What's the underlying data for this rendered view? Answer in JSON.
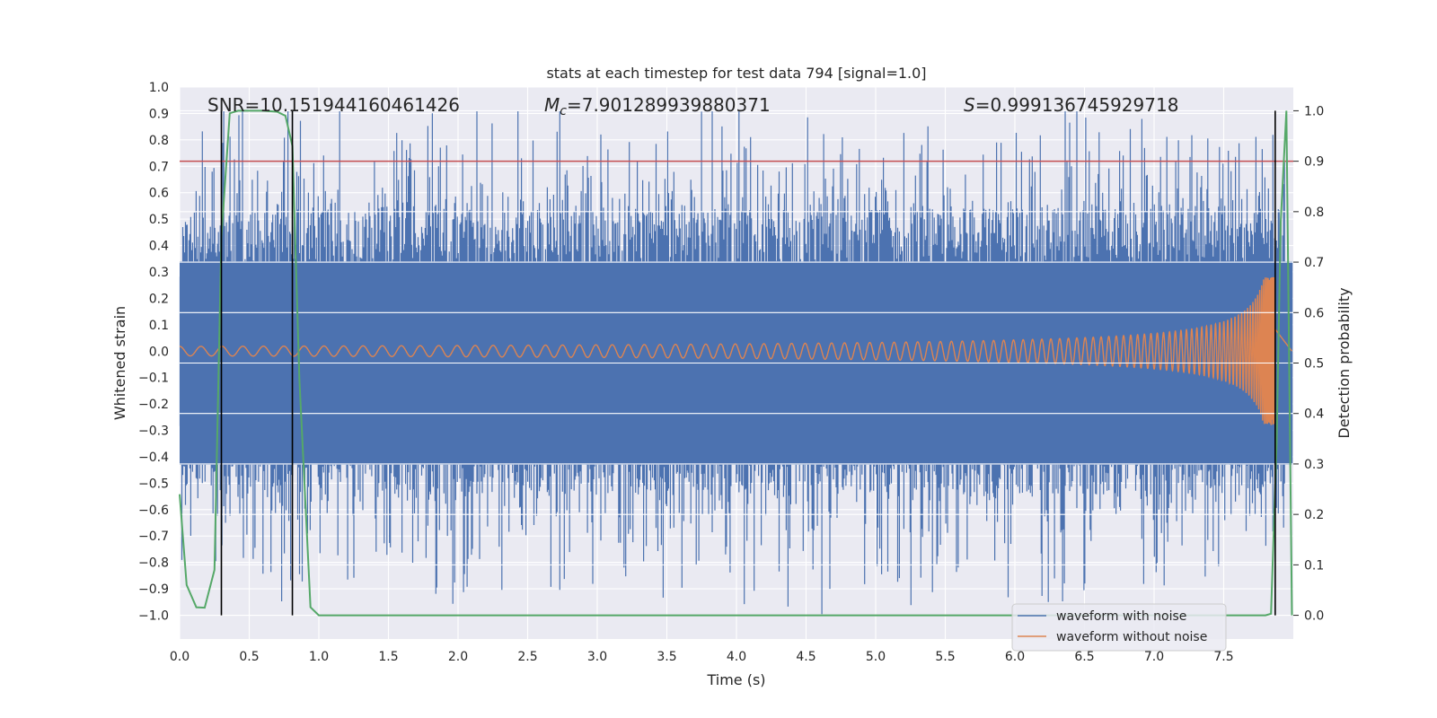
{
  "chart_data": {
    "type": "line",
    "title": "stats at each timestep for test data 794 [signal=1.0]",
    "xlabel": "Time (s)",
    "ylabel": "Whitened strain",
    "y2label": "Detection probability",
    "xlim": [
      0.0,
      8.0
    ],
    "ylim": [
      -1.09,
      1.0
    ],
    "y2lim": [
      -0.047,
      1.047
    ],
    "xticks": [
      "0.0",
      "0.5",
      "1.0",
      "1.5",
      "2.0",
      "2.5",
      "3.0",
      "3.5",
      "4.0",
      "4.5",
      "5.0",
      "5.5",
      "6.0",
      "6.5",
      "7.0",
      "7.5"
    ],
    "xtick_values": [
      0.0,
      0.5,
      1.0,
      1.5,
      2.0,
      2.5,
      3.0,
      3.5,
      4.0,
      4.5,
      5.0,
      5.5,
      6.0,
      6.5,
      7.0,
      7.5
    ],
    "yticks": [
      "1.0",
      "0.9",
      "0.8",
      "0.7",
      "0.6",
      "0.5",
      "0.4",
      "0.3",
      "0.2",
      "0.1",
      "0.0",
      "−0.1",
      "−0.2",
      "−0.3",
      "−0.4",
      "−0.5",
      "−0.6",
      "−0.7",
      "−0.8",
      "−0.9",
      "−1.0"
    ],
    "ytick_values": [
      1.0,
      0.9,
      0.8,
      0.7,
      0.6,
      0.5,
      0.4,
      0.3,
      0.2,
      0.1,
      0.0,
      -0.1,
      -0.2,
      -0.3,
      -0.4,
      -0.5,
      -0.6,
      -0.7,
      -0.8,
      -0.9,
      -1.0
    ],
    "y2ticks": [
      "1.0",
      "0.9",
      "0.8",
      "0.7",
      "0.6",
      "0.5",
      "0.4",
      "0.3",
      "0.2",
      "0.1",
      "0.0"
    ],
    "y2tick_values": [
      1.0,
      0.9,
      0.8,
      0.7,
      0.6,
      0.5,
      0.4,
      0.3,
      0.2,
      0.1,
      0.0
    ],
    "annotations": {
      "snr": "SNR=10.151944160461426",
      "mc_symbol": "M",
      "mc_sub": "c",
      "mc_value": "=7.901289939880371",
      "s_symbol": "S",
      "s_value": "=0.999136745929718"
    },
    "threshold": 0.9,
    "vlines": [
      0.3,
      0.81,
      7.87
    ],
    "detection_probability": {
      "name": "Detection probability",
      "x": [
        0.0,
        0.05,
        0.12,
        0.18,
        0.25,
        0.3,
        0.36,
        0.42,
        0.5,
        0.6,
        0.7,
        0.76,
        0.81,
        0.86,
        0.94,
        1.0,
        1.2,
        2.0,
        3.0,
        4.0,
        5.0,
        6.0,
        7.0,
        7.5,
        7.8,
        7.84,
        7.88,
        7.91,
        7.95,
        7.99
      ],
      "y": [
        0.24,
        0.06,
        0.016,
        0.015,
        0.09,
        0.75,
        0.995,
        1.0,
        1.0,
        1.0,
        0.998,
        0.99,
        0.93,
        0.47,
        0.016,
        0.0,
        0.0,
        0.0,
        0.0,
        0.0,
        0.0,
        0.0,
        0.0,
        0.0,
        0.0,
        0.003,
        0.34,
        0.78,
        1.0,
        0.0
      ]
    },
    "series": [
      {
        "name": "waveform with noise",
        "color": "#4c72b0",
        "amplitude_range": [
          -1.0,
          0.91
        ]
      },
      {
        "name": "waveform without noise",
        "color": "#dd8452",
        "amplitude_range": [
          -0.28,
          0.28
        ],
        "merger_time": 7.87
      }
    ],
    "colors": {
      "background": "#eaeaf2",
      "grid": "#ffffff",
      "noise": "#4c72b0",
      "signal": "#dd8452",
      "probability": "#55a868",
      "threshold": "#c44e52",
      "vline": "#000000"
    }
  }
}
